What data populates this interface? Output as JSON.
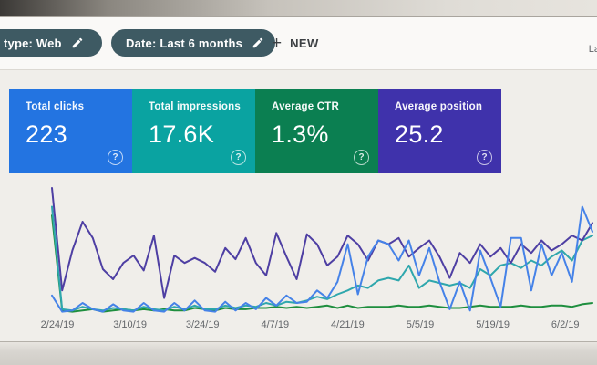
{
  "toolbar": {
    "chips": [
      {
        "label": "type: Web",
        "note": "chip truncated by left screen edge"
      },
      {
        "label": "Date: Last 6 months"
      }
    ],
    "new_button": {
      "plus_icon": "+",
      "label": "NEW"
    },
    "right_truncated_text": "La"
  },
  "cards": [
    {
      "label": "Total clicks",
      "value": "223",
      "color": "#2374e1",
      "help_icon": "?"
    },
    {
      "label": "Total impressions",
      "value": "17.6K",
      "color": "#0aa3a1",
      "help_icon": "?"
    },
    {
      "label": "Average CTR",
      "value": "1.3%",
      "color": "#0b7f51",
      "help_icon": "?"
    },
    {
      "label": "Average position",
      "value": "25.2",
      "color": "#3f32ab",
      "help_icon": "?"
    }
  ],
  "chart_data": {
    "type": "line",
    "title": "",
    "xlabel": "",
    "ylabel": "",
    "x_tick_labels": [
      "2/24/19",
      "3/10/19",
      "3/24/19",
      "4/7/19",
      "4/21/19",
      "5/5/19",
      "5/19/19",
      "6/2/19"
    ],
    "grid": false,
    "legend": false,
    "y_axis_visible": false,
    "value_scale": "estimated, normalized 0-100 of plot height (no y-axis labels shown in UI; each metric has its own hidden scale)",
    "ylim": [
      0,
      100
    ],
    "series": [
      {
        "name": "Average CTR",
        "key": "ctr",
        "color": "#1e8e3e",
        "values": [
          78,
          2,
          1,
          2,
          3,
          1,
          2,
          3,
          2,
          3,
          2,
          3,
          2,
          2,
          4,
          3,
          2,
          4,
          3,
          3,
          4,
          4,
          5,
          4,
          5,
          4,
          5,
          6,
          4,
          6,
          4,
          5,
          5,
          5,
          6,
          5,
          5,
          6,
          5,
          4,
          4,
          5,
          6,
          5,
          5,
          5,
          6,
          5,
          5,
          6,
          6,
          5,
          7,
          8
        ]
      },
      {
        "name": "Total impressions",
        "key": "impressions",
        "color": "#2fa7ad",
        "values": [
          85,
          3,
          2,
          5,
          3,
          2,
          4,
          3,
          2,
          5,
          3,
          2,
          5,
          3,
          6,
          3,
          3,
          6,
          4,
          6,
          5,
          8,
          6,
          9,
          8,
          10,
          13,
          11,
          15,
          18,
          22,
          20,
          26,
          28,
          26,
          38,
          20,
          26,
          24,
          22,
          24,
          20,
          35,
          30,
          38,
          40,
          36,
          42,
          38,
          45,
          50,
          42,
          58,
          62
        ]
      },
      {
        "name": "Average position",
        "key": "position",
        "color": "#4e3fa3",
        "values": [
          100,
          18,
          50,
          73,
          60,
          35,
          27,
          40,
          46,
          34,
          62,
          12,
          46,
          40,
          44,
          40,
          33,
          52,
          43,
          60,
          40,
          30,
          64,
          45,
          27,
          63,
          55,
          38,
          45,
          62,
          55,
          42,
          58,
          55,
          60,
          45,
          52,
          58,
          45,
          28,
          48,
          40,
          55,
          45,
          52,
          40,
          55,
          48,
          58,
          50,
          55,
          62,
          58,
          72
        ]
      },
      {
        "name": "Total clicks",
        "key": "clicks",
        "color": "#4582e8",
        "values": [
          14,
          1,
          2,
          8,
          3,
          1,
          7,
          2,
          1,
          8,
          2,
          1,
          8,
          2,
          10,
          2,
          1,
          9,
          2,
          8,
          3,
          12,
          6,
          14,
          8,
          9,
          18,
          12,
          25,
          55,
          15,
          45,
          58,
          55,
          42,
          58,
          30,
          52,
          25,
          3,
          25,
          2,
          50,
          28,
          5,
          60,
          60,
          18,
          55,
          30,
          48,
          25,
          85,
          65
        ]
      }
    ]
  }
}
